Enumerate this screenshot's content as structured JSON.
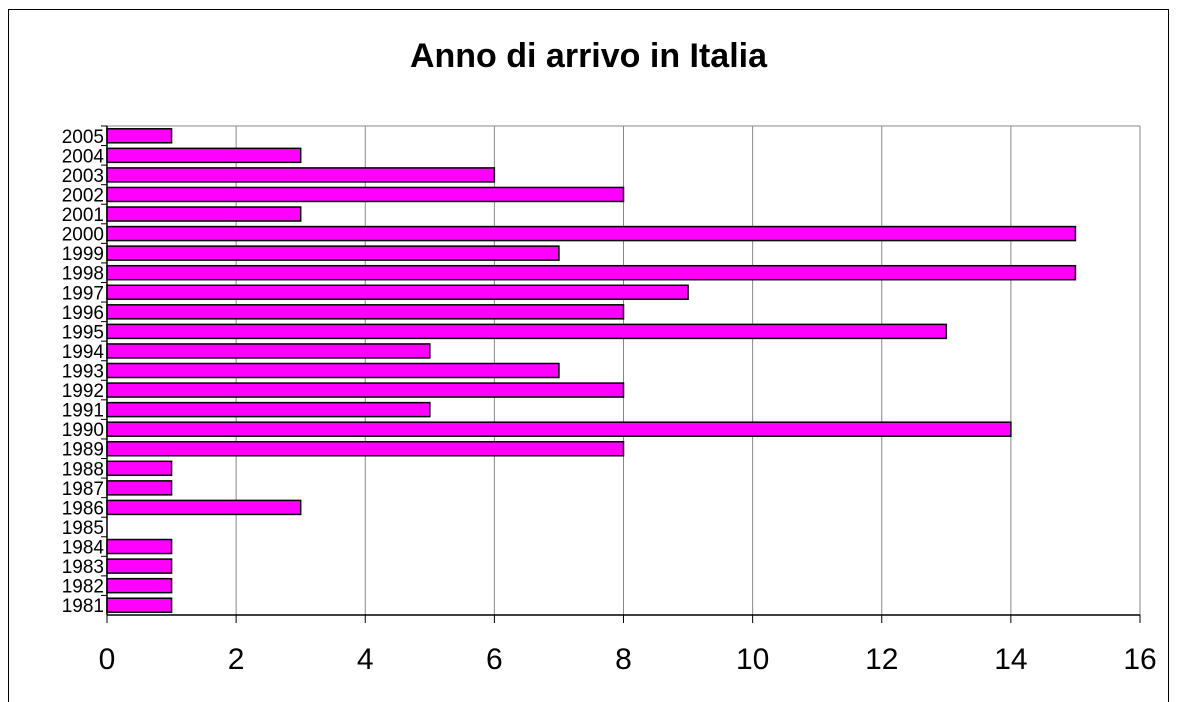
{
  "chart_data": {
    "type": "bar",
    "orientation": "horizontal",
    "title": "Anno di arrivo in Italia",
    "xlabel": "",
    "ylabel": "",
    "categories": [
      "2005",
      "2004",
      "2003",
      "2002",
      "2001",
      "2000",
      "1999",
      "1998",
      "1997",
      "1996",
      "1995",
      "1994",
      "1993",
      "1992",
      "1991",
      "1990",
      "1989",
      "1988",
      "1987",
      "1986",
      "1985",
      "1984",
      "1983",
      "1982",
      "1981"
    ],
    "values": [
      1,
      3,
      6,
      8,
      3,
      15,
      7,
      15,
      9,
      8,
      13,
      5,
      7,
      8,
      5,
      14,
      8,
      1,
      1,
      3,
      0,
      1,
      1,
      1,
      1
    ],
    "xlim": [
      0,
      16
    ],
    "xticks": [
      "0",
      "2",
      "4",
      "6",
      "8",
      "10",
      "12",
      "14",
      "16"
    ],
    "grid": "vertical",
    "legend": "none",
    "bar_color": "#ff00ff",
    "bar_edge_color": "#000000",
    "grid_color": "#888888"
  }
}
